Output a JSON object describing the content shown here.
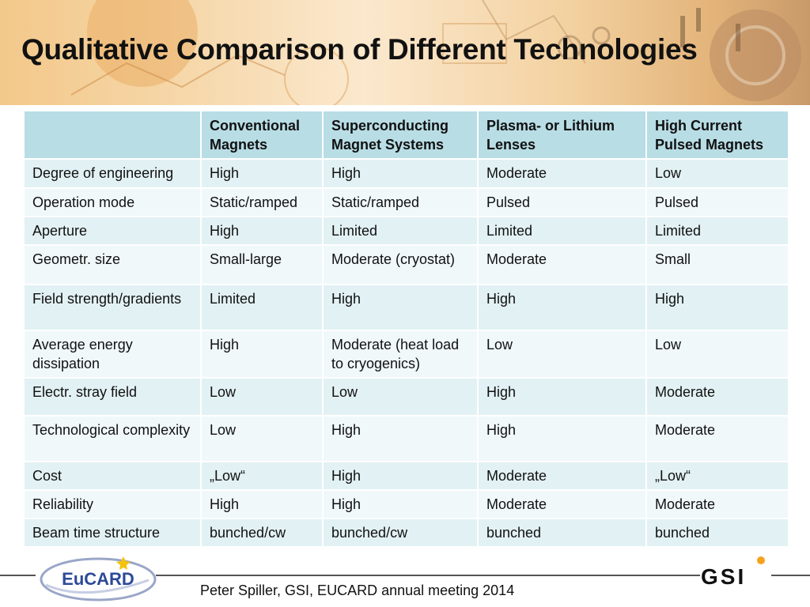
{
  "slide": {
    "title": "Qualitative Comparison of Different Technologies",
    "footer": "Peter Spiller, GSI, EUCARD annual meeting 2014"
  },
  "logos": {
    "eucard": "EuCARD",
    "gsi": "GSI"
  },
  "table": {
    "headers": [
      "",
      "Conventional Magnets",
      "Superconducting Magnet Systems",
      "Plasma- or Lithium Lenses",
      "High Current Pulsed Magnets"
    ],
    "rows": [
      [
        "Degree of engineering",
        "High",
        "High",
        "Moderate",
        "Low"
      ],
      [
        "Operation mode",
        "Static/ramped",
        "Static/ramped",
        "Pulsed",
        "Pulsed"
      ],
      [
        "Aperture",
        "High",
        "Limited",
        "Limited",
        "Limited"
      ],
      [
        "Geometr. size",
        "Small-large",
        "Moderate (cryostat)",
        "Moderate",
        "Small"
      ],
      [
        "Field strength/gradients",
        "Limited",
        "High",
        "High",
        "High"
      ],
      [
        "Average energy dissipation",
        "High",
        "Moderate (heat load to cryogenics)",
        "Low",
        "Low"
      ],
      [
        "Electr. stray field",
        "Low",
        "Low",
        "High",
        "Moderate"
      ],
      [
        "Technological complexity",
        "Low",
        "High",
        "High",
        "Moderate"
      ],
      [
        "Cost",
        "„Low“",
        "High",
        "Moderate",
        "„Low“"
      ],
      [
        "Reliability",
        "High",
        "High",
        "Moderate",
        "Moderate"
      ],
      [
        "Beam time structure",
        "bunched/cw",
        "bunched/cw",
        "bunched",
        "bunched"
      ]
    ]
  }
}
